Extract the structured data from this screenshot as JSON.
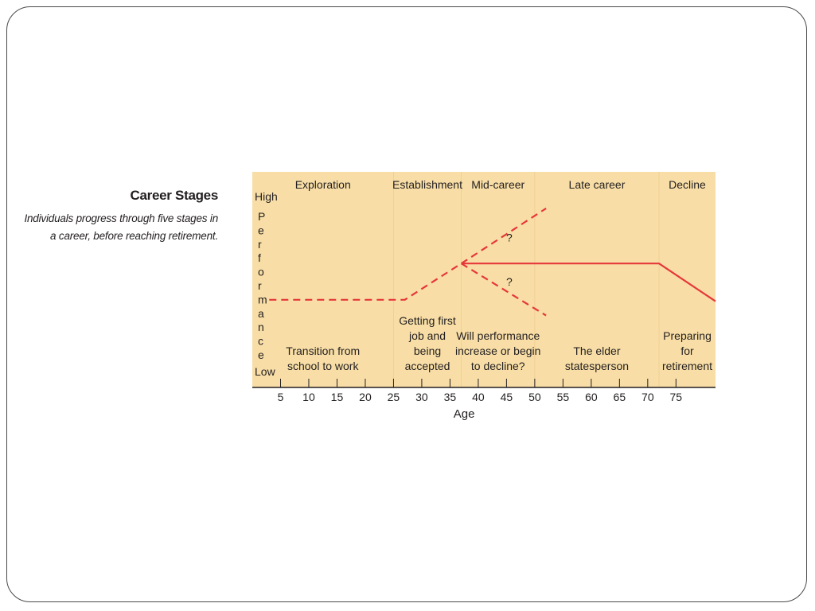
{
  "caption": {
    "title": "Career Stages",
    "lines": [
      "Individuals progress through five stages in",
      "a career, before reaching retirement."
    ]
  },
  "colors": {
    "panel_background": "#f8dea6",
    "line": "#e6373a",
    "axis": "#231f20",
    "frame": "#4a4a4a"
  },
  "chart_data": {
    "type": "line",
    "xlabel": "Age",
    "ylabel_high": "High",
    "ylabel_low": "Low",
    "ylabel_letters": [
      "P",
      "e",
      "r",
      "f",
      "o",
      "r",
      "m",
      "a",
      "n",
      "c",
      "e"
    ],
    "xlim": [
      0,
      82
    ],
    "x_ticks": [
      5,
      10,
      15,
      20,
      25,
      30,
      35,
      40,
      45,
      50,
      55,
      60,
      65,
      70,
      75
    ],
    "x_tick_labels": [
      "5",
      "10",
      "15",
      "20",
      "25",
      "30",
      "35",
      "40",
      "45",
      "50",
      "55",
      "60",
      "65",
      "70",
      "75"
    ],
    "stages": [
      {
        "name": "Exploration",
        "start": 0,
        "end": 25,
        "description": [
          "Transition from",
          "school to work"
        ]
      },
      {
        "name": "Establishment",
        "start": 25,
        "end": 37,
        "description": [
          "Getting first",
          "job and",
          "being",
          "accepted"
        ]
      },
      {
        "name": "Mid-career",
        "start": 37,
        "end": 50,
        "description": [
          "Will performance",
          "increase or begin",
          "to decline?"
        ]
      },
      {
        "name": "Late career",
        "start": 50,
        "end": 72,
        "description": [
          "The elder",
          "statesperson"
        ]
      },
      {
        "name": "Decline",
        "start": 72,
        "end": 82,
        "description": [
          "Preparing",
          "for",
          "retirement"
        ]
      }
    ],
    "y_scale": "relative performance (0 = Low, 1 = High)",
    "series": [
      {
        "style": "dashed",
        "points": [
          [
            3,
            0.38
          ],
          [
            27,
            0.38
          ],
          [
            37,
            0.61
          ]
        ]
      },
      {
        "style": "dashed",
        "points": [
          [
            37,
            0.61
          ],
          [
            52,
            0.96
          ]
        ]
      },
      {
        "style": "dashed",
        "points": [
          [
            37,
            0.61
          ],
          [
            52,
            0.28
          ]
        ]
      },
      {
        "style": "solid",
        "points": [
          [
            37,
            0.61
          ],
          [
            72,
            0.61
          ],
          [
            82,
            0.37
          ]
        ]
      }
    ],
    "annotations": [
      {
        "text": "?",
        "x": 45.5,
        "y": 0.75
      },
      {
        "text": "?",
        "x": 45.5,
        "y": 0.47
      }
    ]
  }
}
